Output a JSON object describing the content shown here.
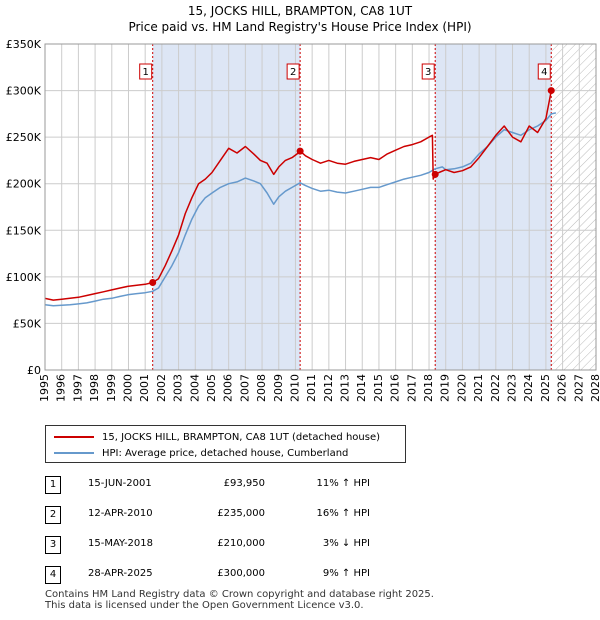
{
  "title": "15, JOCKS HILL, BRAMPTON, CA8 1UT",
  "subtitle": "Price paid vs. HM Land Registry's House Price Index (HPI)",
  "colors": {
    "property": "#cc0000",
    "hpi": "#6699cc",
    "shade": "#dde6f5",
    "grid": "#cccccc"
  },
  "legend": [
    {
      "label": "15, JOCKS HILL, BRAMPTON, CA8 1UT (detached house)",
      "color": "#cc0000"
    },
    {
      "label": "HPI: Average price, detached house, Cumberland",
      "color": "#6699cc"
    }
  ],
  "sales": [
    {
      "num": "1",
      "date": "15-JUN-2001",
      "price": "£93,950",
      "delta": "11% ↑ HPI"
    },
    {
      "num": "2",
      "date": "12-APR-2010",
      "price": "£235,000",
      "delta": "16% ↑ HPI"
    },
    {
      "num": "3",
      "date": "15-MAY-2018",
      "price": "£210,000",
      "delta": "3% ↓ HPI"
    },
    {
      "num": "4",
      "date": "28-APR-2025",
      "price": "£300,000",
      "delta": "9% ↑ HPI"
    }
  ],
  "footer": [
    "Contains HM Land Registry data © Crown copyright and database right 2025.",
    "This data is licensed under the Open Government Licence v3.0."
  ],
  "chart_data": {
    "type": "line",
    "title": "15, JOCKS HILL, BRAMPTON, CA8 1UT",
    "subtitle": "Price paid vs. HM Land Registry's House Price Index (HPI)",
    "xlim": [
      1995,
      2028
    ],
    "ylim": [
      0,
      350000
    ],
    "y_ticks": [
      0,
      50000,
      100000,
      150000,
      200000,
      250000,
      300000,
      350000
    ],
    "y_tick_labels": [
      "£0",
      "£50K",
      "£100K",
      "£150K",
      "£200K",
      "£250K",
      "£300K",
      "£350K"
    ],
    "x_ticks": [
      1995,
      1996,
      1997,
      1998,
      1999,
      2000,
      2001,
      2002,
      2003,
      2004,
      2005,
      2006,
      2007,
      2008,
      2009,
      2010,
      2011,
      2012,
      2013,
      2014,
      2015,
      2016,
      2017,
      2018,
      2019,
      2020,
      2021,
      2022,
      2023,
      2024,
      2025,
      2026,
      2027,
      2028
    ],
    "grid": true,
    "shaded_ranges": [
      [
        2001.45,
        2010.28
      ],
      [
        2018.37,
        2025.32
      ]
    ],
    "forecast_from": 2025.32,
    "series": [
      {
        "name": "15, JOCKS HILL, BRAMPTON, CA8 1UT (detached house)",
        "color": "#cc0000",
        "x": [
          1995.0,
          1995.5,
          1996.0,
          1996.5,
          1997.0,
          1997.5,
          1998.0,
          1998.5,
          1999.0,
          1999.5,
          2000.0,
          2000.5,
          2001.0,
          2001.45,
          2001.8,
          2002.2,
          2002.6,
          2003.0,
          2003.4,
          2003.8,
          2004.2,
          2004.6,
          2005.0,
          2005.5,
          2006.0,
          2006.5,
          2007.0,
          2007.5,
          2007.9,
          2008.3,
          2008.7,
          2009.0,
          2009.4,
          2009.8,
          2010.1,
          2010.28,
          2010.6,
          2011.0,
          2011.5,
          2012.0,
          2012.5,
          2013.0,
          2013.5,
          2014.0,
          2014.5,
          2015.0,
          2015.5,
          2016.0,
          2016.5,
          2017.0,
          2017.5,
          2018.0,
          2018.2,
          2018.25,
          2018.37,
          2018.6,
          2019.0,
          2019.5,
          2020.0,
          2020.5,
          2021.0,
          2021.5,
          2022.0,
          2022.5,
          2023.0,
          2023.5,
          2024.0,
          2024.5,
          2025.0,
          2025.32
        ],
        "values": [
          77000,
          75000,
          76000,
          77000,
          78000,
          80000,
          82000,
          84000,
          86000,
          88000,
          90000,
          91000,
          92000,
          93950,
          98000,
          112000,
          128000,
          145000,
          168000,
          185000,
          200000,
          205000,
          212000,
          225000,
          238000,
          233000,
          240000,
          232000,
          225000,
          222000,
          210000,
          218000,
          225000,
          228000,
          232000,
          235000,
          230000,
          226000,
          222000,
          225000,
          222000,
          221000,
          224000,
          226000,
          228000,
          226000,
          232000,
          236000,
          240000,
          242000,
          245000,
          250000,
          252000,
          205000,
          210000,
          212000,
          215000,
          212000,
          214000,
          218000,
          228000,
          240000,
          252000,
          262000,
          250000,
          245000,
          262000,
          255000,
          270000,
          300000
        ]
      },
      {
        "name": "HPI: Average price, detached house, Cumberland",
        "color": "#6699cc",
        "x": [
          1995.0,
          1995.5,
          1996.0,
          1996.5,
          1997.0,
          1997.5,
          1998.0,
          1998.5,
          1999.0,
          1999.5,
          2000.0,
          2000.5,
          2001.0,
          2001.45,
          2001.8,
          2002.2,
          2002.6,
          2003.0,
          2003.4,
          2003.8,
          2004.2,
          2004.6,
          2005.0,
          2005.5,
          2006.0,
          2006.5,
          2007.0,
          2007.5,
          2007.9,
          2008.3,
          2008.7,
          2009.0,
          2009.4,
          2009.8,
          2010.28,
          2010.6,
          2011.0,
          2011.5,
          2012.0,
          2012.5,
          2013.0,
          2013.5,
          2014.0,
          2014.5,
          2015.0,
          2015.5,
          2016.0,
          2016.5,
          2017.0,
          2017.5,
          2018.0,
          2018.37,
          2018.8,
          2019.0,
          2019.5,
          2020.0,
          2020.5,
          2021.0,
          2021.5,
          2022.0,
          2022.5,
          2023.0,
          2023.5,
          2024.0,
          2024.5,
          2025.0,
          2025.32,
          2025.6
        ],
        "values": [
          70000,
          69000,
          69500,
          70000,
          71000,
          72000,
          74000,
          76000,
          77000,
          79000,
          81000,
          82000,
          83000,
          84500,
          88000,
          100000,
          112000,
          126000,
          145000,
          162000,
          176000,
          185000,
          190000,
          196000,
          200000,
          202000,
          206000,
          203000,
          200000,
          190000,
          178000,
          186000,
          192000,
          196000,
          201000,
          198000,
          195000,
          192000,
          193000,
          191000,
          190000,
          192000,
          194000,
          196000,
          196000,
          199000,
          202000,
          205000,
          207000,
          209000,
          212000,
          216000,
          218000,
          215000,
          216000,
          218000,
          222000,
          232000,
          240000,
          250000,
          258000,
          255000,
          252000,
          258000,
          262000,
          268000,
          275000,
          276000
        ]
      }
    ],
    "markers": [
      {
        "label": "1",
        "x": 2001.45,
        "y": 93950
      },
      {
        "label": "2",
        "x": 2010.28,
        "y": 235000
      },
      {
        "label": "3",
        "x": 2018.37,
        "y": 210000
      },
      {
        "label": "4",
        "x": 2025.32,
        "y": 300000
      }
    ]
  }
}
